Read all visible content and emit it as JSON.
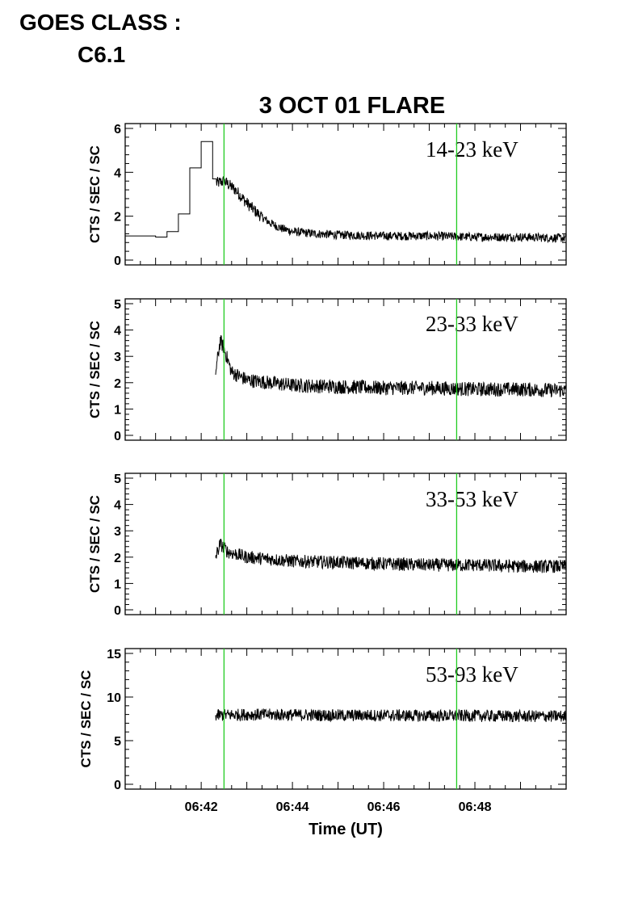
{
  "header": {
    "goes_line1": "GOES CLASS :",
    "goes_line2": "C6.1"
  },
  "chart_data": {
    "type": "line",
    "title": "3 OCT 01 FLARE",
    "xlabel": "Time (UT)",
    "ylabel": "CTS / SEC / SC",
    "x_unit": "UT minutes",
    "xlim": [
      "06:40:20",
      "06:50:00"
    ],
    "x_tick_labels": [
      "06:42",
      "06:44",
      "06:46",
      "06:48"
    ],
    "markers": [
      "06:42:30",
      "06:47:36"
    ],
    "marker_color": "#22cc22",
    "line_color": "#000000",
    "grid": false,
    "panels": [
      {
        "name": "14-23 keV",
        "ylim": [
          0,
          6
        ],
        "y_ticks": [
          "0",
          "2",
          "4",
          "6"
        ],
        "series": [
          {
            "x": [
              "06:40:20",
              "06:40:40",
              "06:41:00",
              "06:41:15",
              "06:41:30",
              "06:41:45",
              "06:42:00",
              "06:42:15",
              "06:42:20",
              "06:42:30",
              "06:42:45",
              "06:43:00",
              "06:43:15",
              "06:43:30",
              "06:43:45",
              "06:44:00",
              "06:44:30",
              "06:45:00",
              "06:46:00",
              "06:47:00",
              "06:48:00",
              "06:49:00",
              "06:50:00"
            ],
            "values": [
              1.1,
              1.1,
              1.05,
              1.3,
              2.1,
              4.2,
              5.4,
              3.7,
              3.5,
              3.6,
              3.2,
              2.6,
              2.1,
              1.7,
              1.45,
              1.3,
              1.2,
              1.15,
              1.1,
              1.1,
              1.05,
              1.05,
              1.0
            ]
          }
        ]
      },
      {
        "name": "23-33 keV",
        "ylim": [
          0,
          5
        ],
        "y_ticks": [
          "0",
          "1",
          "2",
          "3",
          "4",
          "5"
        ],
        "series": [
          {
            "x": [
              "06:42:19",
              "06:42:25",
              "06:42:30",
              "06:42:40",
              "06:43:00",
              "06:43:30",
              "06:44:00",
              "06:45:00",
              "06:46:00",
              "06:47:00",
              "06:48:00",
              "06:49:00",
              "06:50:00"
            ],
            "values": [
              2.4,
              3.6,
              3.3,
              2.4,
              2.1,
              2.0,
              1.9,
              1.85,
              1.8,
              1.8,
              1.75,
              1.75,
              1.7
            ]
          }
        ]
      },
      {
        "name": "33-53 keV",
        "ylim": [
          0,
          5
        ],
        "y_ticks": [
          "0",
          "1",
          "2",
          "3",
          "4",
          "5"
        ],
        "series": [
          {
            "x": [
              "06:42:19",
              "06:42:25",
              "06:42:35",
              "06:43:00",
              "06:44:00",
              "06:45:00",
              "06:46:00",
              "06:47:00",
              "06:48:00",
              "06:49:00",
              "06:50:00"
            ],
            "values": [
              2.0,
              2.5,
              2.2,
              2.0,
              1.85,
              1.8,
              1.75,
              1.7,
              1.7,
              1.65,
              1.65
            ]
          }
        ]
      },
      {
        "name": "53-93 keV",
        "ylim": [
          0,
          15
        ],
        "y_ticks": [
          "0",
          "5",
          "10",
          "15"
        ],
        "series": [
          {
            "x": [
              "06:42:19",
              "06:43:00",
              "06:44:00",
              "06:45:00",
              "06:46:00",
              "06:47:00",
              "06:48:00",
              "06:49:00",
              "06:50:00"
            ],
            "values": [
              7.9,
              8.0,
              7.95,
              7.9,
              7.9,
              7.85,
              7.85,
              7.8,
              7.8
            ]
          }
        ]
      }
    ]
  }
}
